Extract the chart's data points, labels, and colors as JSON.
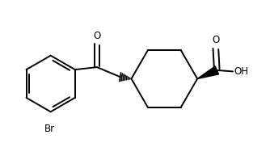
{
  "bg_color": "#ffffff",
  "line_color": "#000000",
  "line_width": 1.4,
  "font_size": 8.5,
  "figsize": [
    3.34,
    1.98
  ],
  "dpi": 100,
  "xlim": [
    0.0,
    1.0
  ],
  "ylim": [
    0.0,
    0.65
  ]
}
